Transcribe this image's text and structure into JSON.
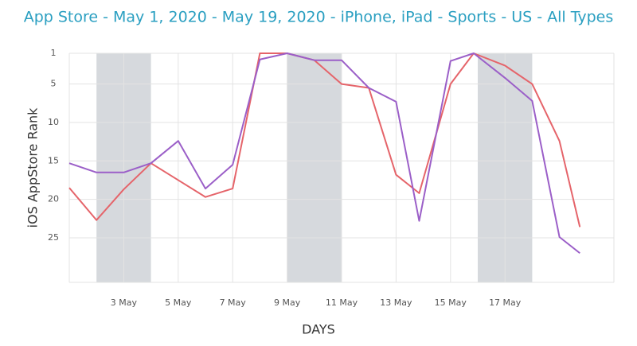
{
  "chart_data": {
    "type": "line",
    "title": "App Store - May 1, 2020 - May 19, 2020 - iPhone, iPad - Sports - US - All Types",
    "x_label": "DAYS",
    "y_label": "iOS AppStore Rank",
    "x": [
      1,
      2,
      3,
      4,
      5,
      6,
      7,
      8,
      9,
      10,
      11,
      12,
      13,
      13.85,
      15,
      15.85,
      17,
      18,
      19,
      19.75
    ],
    "series": [
      {
        "color": "#e5646a",
        "values": [
          18.5,
          22.7,
          18.7,
          15.3,
          17.5,
          19.7,
          18.6,
          1,
          1,
          1.9,
          5,
          5.5,
          16.8,
          19.2,
          5,
          1,
          2.6,
          5,
          12.4,
          23.6
        ]
      },
      {
        "color": "#9b5fc8",
        "values": [
          15.3,
          16.5,
          16.5,
          15.3,
          12.4,
          18.6,
          15.5,
          1.8,
          1,
          1.9,
          1.9,
          5.5,
          7.3,
          22.8,
          2.0,
          1,
          4.2,
          7.2,
          24.9,
          27
        ]
      }
    ],
    "xlim": [
      1,
      21
    ],
    "xticks": [
      {
        "value": 3,
        "label": "3 May"
      },
      {
        "value": 5,
        "label": "5 May"
      },
      {
        "value": 7,
        "label": "7 May"
      },
      {
        "value": 9,
        "label": "9 May"
      },
      {
        "value": 11,
        "label": "11 May"
      },
      {
        "value": 13,
        "label": "13 May"
      },
      {
        "value": 15,
        "label": "15 May"
      },
      {
        "value": 17,
        "label": "17 May"
      }
    ],
    "ylim": [
      1,
      30.8
    ],
    "y_inverted": true,
    "yticks": [
      1,
      5,
      10,
      15,
      20,
      25
    ],
    "shaded_spans": [
      [
        2,
        4
      ],
      [
        9,
        11
      ],
      [
        16,
        18
      ]
    ],
    "shade_color": "#d6d9dd",
    "grid": true
  }
}
